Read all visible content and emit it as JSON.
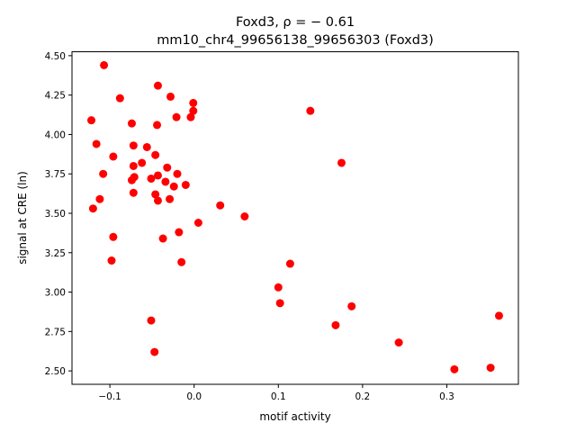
{
  "chart_data": {
    "type": "scatter",
    "title_line1": "Foxd3, ρ = − 0.61",
    "title_line2": "mm10_chr4_99656138_99656303 (Foxd3)",
    "xlabel": "motif activity",
    "ylabel": "signal at CRE (ln)",
    "xlim": [
      -0.145,
      0.385
    ],
    "ylim": [
      2.415,
      4.525
    ],
    "xticks": [
      -0.1,
      0.0,
      0.1,
      0.2,
      0.3
    ],
    "xtick_labels": [
      "−0.1",
      "0.0",
      "0.1",
      "0.2",
      "0.3"
    ],
    "yticks": [
      2.5,
      2.75,
      3.0,
      3.25,
      3.5,
      3.75,
      4.0,
      4.25,
      4.5
    ],
    "ytick_labels": [
      "2.50",
      "2.75",
      "3.00",
      "3.25",
      "3.50",
      "3.75",
      "4.00",
      "4.25",
      "4.50"
    ],
    "grid": false,
    "point_color": "#ff0000",
    "points": [
      [
        -0.107,
        4.44
      ],
      [
        -0.043,
        4.31
      ],
      [
        -0.088,
        4.23
      ],
      [
        -0.028,
        4.24
      ],
      [
        -0.001,
        4.2
      ],
      [
        -0.001,
        4.15
      ],
      [
        -0.021,
        4.11
      ],
      [
        -0.004,
        4.11
      ],
      [
        0.138,
        4.15
      ],
      [
        -0.122,
        4.09
      ],
      [
        -0.074,
        4.07
      ],
      [
        -0.044,
        4.06
      ],
      [
        -0.116,
        3.94
      ],
      [
        -0.072,
        3.93
      ],
      [
        -0.056,
        3.92
      ],
      [
        -0.096,
        3.86
      ],
      [
        -0.046,
        3.87
      ],
      [
        -0.062,
        3.82
      ],
      [
        -0.072,
        3.8
      ],
      [
        -0.032,
        3.79
      ],
      [
        0.175,
        3.82
      ],
      [
        -0.108,
        3.75
      ],
      [
        -0.043,
        3.74
      ],
      [
        -0.02,
        3.75
      ],
      [
        -0.071,
        3.73
      ],
      [
        -0.074,
        3.71
      ],
      [
        -0.051,
        3.72
      ],
      [
        -0.034,
        3.7
      ],
      [
        -0.024,
        3.67
      ],
      [
        -0.01,
        3.68
      ],
      [
        -0.072,
        3.63
      ],
      [
        -0.046,
        3.62
      ],
      [
        -0.112,
        3.59
      ],
      [
        -0.043,
        3.58
      ],
      [
        -0.029,
        3.59
      ],
      [
        -0.12,
        3.53
      ],
      [
        0.031,
        3.55
      ],
      [
        0.06,
        3.48
      ],
      [
        0.005,
        3.44
      ],
      [
        -0.018,
        3.38
      ],
      [
        -0.096,
        3.35
      ],
      [
        -0.037,
        3.34
      ],
      [
        -0.098,
        3.2
      ],
      [
        -0.015,
        3.19
      ],
      [
        0.114,
        3.18
      ],
      [
        0.1,
        3.03
      ],
      [
        0.102,
        2.93
      ],
      [
        0.187,
        2.91
      ],
      [
        0.362,
        2.85
      ],
      [
        -0.051,
        2.82
      ],
      [
        0.168,
        2.79
      ],
      [
        0.243,
        2.68
      ],
      [
        -0.047,
        2.62
      ],
      [
        0.309,
        2.51
      ],
      [
        0.352,
        2.52
      ]
    ]
  }
}
